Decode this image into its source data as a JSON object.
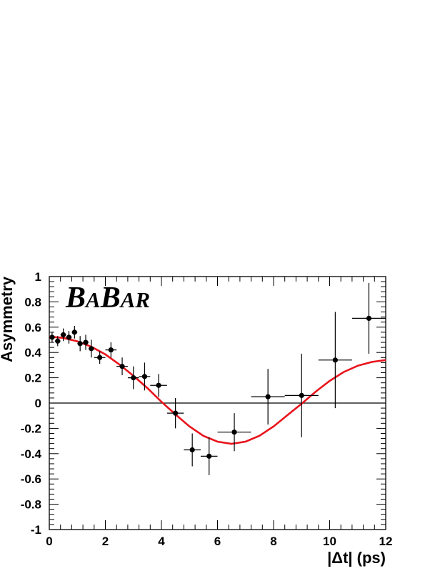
{
  "chart_data": {
    "type": "scatter",
    "logo": "BaBar",
    "xlabel": "|Δt| (ps)",
    "ylabel": "Asymmetry",
    "xlim": [
      0,
      12
    ],
    "ylim": [
      -1,
      1
    ],
    "x_ticks": [
      0,
      2,
      4,
      6,
      8,
      10,
      12
    ],
    "y_ticks": [
      -1,
      -0.8,
      -0.6,
      -0.4,
      -0.2,
      0,
      0.2,
      0.4,
      0.6,
      0.8,
      1
    ],
    "x_tick_labels": [
      "0",
      "2",
      "4",
      "6",
      "8",
      "10",
      "12"
    ],
    "y_tick_labels": [
      "-1",
      "-0.8",
      "-0.6",
      "-0.4",
      "-0.2",
      "0",
      "0.2",
      "0.4",
      "0.6",
      "0.8",
      "1"
    ],
    "grid": false,
    "zero_line": true,
    "series": [
      {
        "kind": "points_with_errors",
        "color": "#000000",
        "points": [
          {
            "x": 0.1,
            "y": 0.52,
            "xerr": 0.1,
            "yerr": 0.04
          },
          {
            "x": 0.3,
            "y": 0.49,
            "xerr": 0.1,
            "yerr": 0.04
          },
          {
            "x": 0.5,
            "y": 0.54,
            "xerr": 0.1,
            "yerr": 0.05
          },
          {
            "x": 0.7,
            "y": 0.52,
            "xerr": 0.1,
            "yerr": 0.05
          },
          {
            "x": 0.9,
            "y": 0.56,
            "xerr": 0.1,
            "yerr": 0.05
          },
          {
            "x": 1.1,
            "y": 0.47,
            "xerr": 0.1,
            "yerr": 0.06
          },
          {
            "x": 1.3,
            "y": 0.48,
            "xerr": 0.1,
            "yerr": 0.06
          },
          {
            "x": 1.5,
            "y": 0.43,
            "xerr": 0.1,
            "yerr": 0.07
          },
          {
            "x": 1.8,
            "y": 0.36,
            "xerr": 0.2,
            "yerr": 0.05
          },
          {
            "x": 2.2,
            "y": 0.42,
            "xerr": 0.2,
            "yerr": 0.06
          },
          {
            "x": 2.6,
            "y": 0.29,
            "xerr": 0.2,
            "yerr": 0.07
          },
          {
            "x": 3.0,
            "y": 0.2,
            "xerr": 0.2,
            "yerr": 0.09
          },
          {
            "x": 3.4,
            "y": 0.21,
            "xerr": 0.2,
            "yerr": 0.11
          },
          {
            "x": 3.9,
            "y": 0.14,
            "xerr": 0.3,
            "yerr": 0.09
          },
          {
            "x": 4.5,
            "y": -0.08,
            "xerr": 0.3,
            "yerr": 0.12
          },
          {
            "x": 5.1,
            "y": -0.37,
            "xerr": 0.3,
            "yerr": 0.13
          },
          {
            "x": 5.7,
            "y": -0.42,
            "xerr": 0.3,
            "yerr": 0.15
          },
          {
            "x": 6.6,
            "y": -0.23,
            "xerr": 0.6,
            "yerr": 0.15
          },
          {
            "x": 7.8,
            "y": 0.05,
            "xerr": 0.6,
            "yerr": 0.22
          },
          {
            "x": 9.0,
            "y": 0.06,
            "xerr": 0.6,
            "yerr": 0.33
          },
          {
            "x": 10.2,
            "y": 0.34,
            "xerr": 0.6,
            "yerr": 0.38
          },
          {
            "x": 11.4,
            "y": 0.67,
            "xerr": 0.6,
            "yerr": 0.28
          }
        ]
      },
      {
        "kind": "curve",
        "color": "#e8141c",
        "points": [
          [
            0,
            0.525
          ],
          [
            0.5,
            0.515
          ],
          [
            1.0,
            0.488
          ],
          [
            1.5,
            0.445
          ],
          [
            2.0,
            0.385
          ],
          [
            2.5,
            0.305
          ],
          [
            3.0,
            0.215
          ],
          [
            3.5,
            0.118
          ],
          [
            4.0,
            0.01
          ],
          [
            4.5,
            -0.09
          ],
          [
            5.0,
            -0.185
          ],
          [
            5.5,
            -0.26
          ],
          [
            6.0,
            -0.305
          ],
          [
            6.5,
            -0.322
          ],
          [
            7.0,
            -0.305
          ],
          [
            7.5,
            -0.258
          ],
          [
            8.0,
            -0.185
          ],
          [
            8.5,
            -0.095
          ],
          [
            9.0,
            -0.005
          ],
          [
            9.5,
            0.09
          ],
          [
            10.0,
            0.175
          ],
          [
            10.5,
            0.245
          ],
          [
            11.0,
            0.295
          ],
          [
            11.5,
            0.325
          ],
          [
            12.0,
            0.34
          ]
        ]
      }
    ]
  }
}
